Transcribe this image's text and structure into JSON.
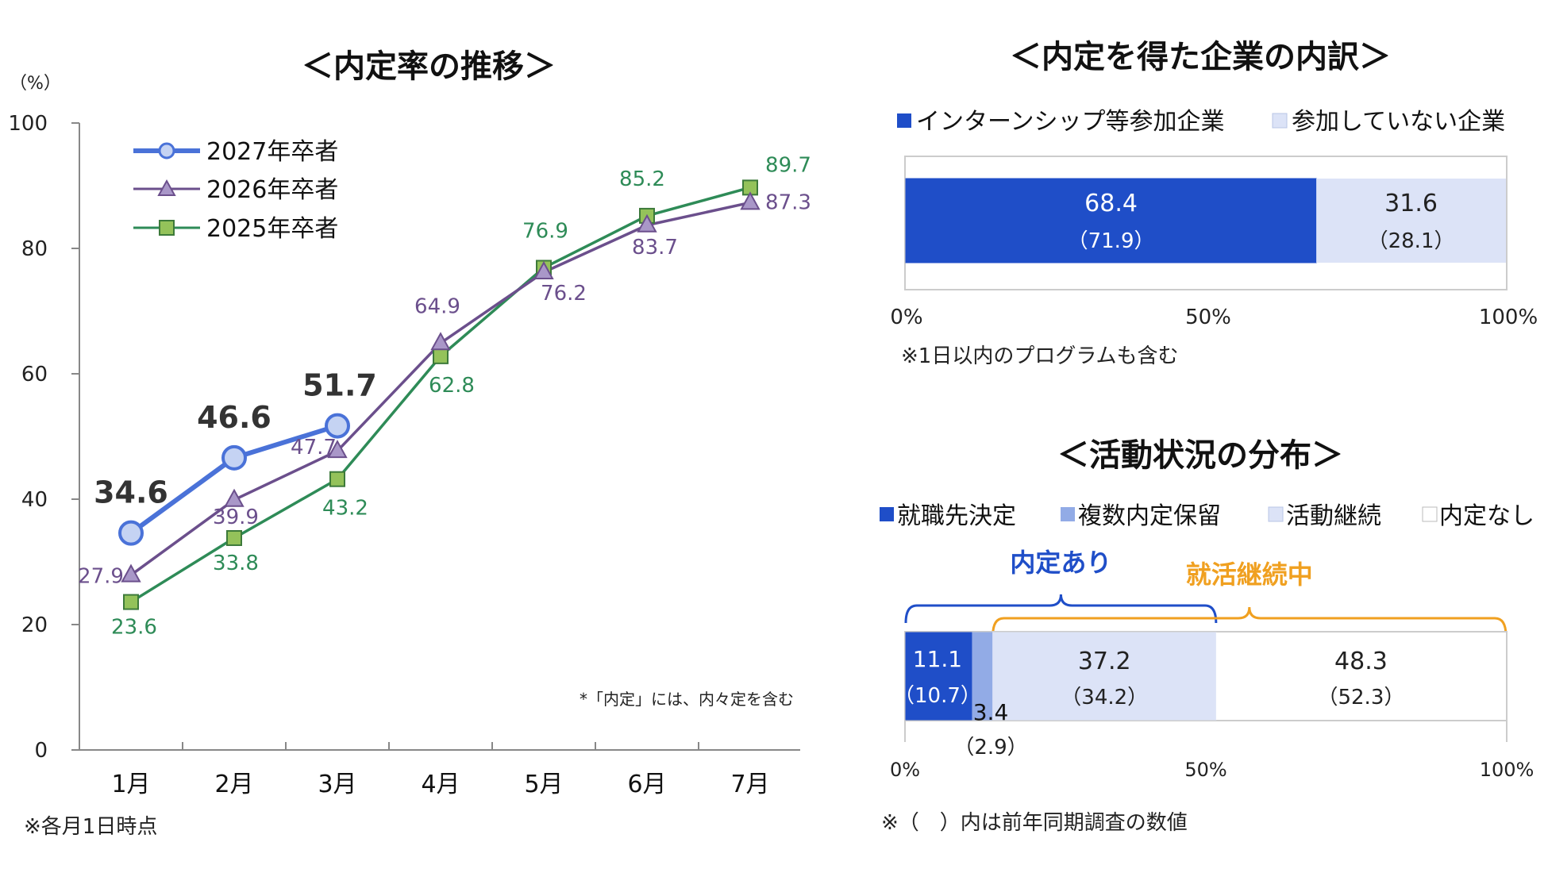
{
  "chart_data": [
    {
      "type": "line",
      "title": "＜内定率の推移＞",
      "ylabel": "（%）",
      "ylim": [
        0,
        100
      ],
      "yticks": [
        0,
        20,
        40,
        60,
        80,
        100
      ],
      "categories": [
        "1月",
        "2月",
        "3月",
        "4月",
        "5月",
        "6月",
        "7月"
      ],
      "legend_position": "top-left",
      "series": [
        {
          "name": "2027年卒者",
          "color": "#4a72d8",
          "marker": "circle",
          "values": [
            34.6,
            46.6,
            51.7,
            null,
            null,
            null,
            null
          ],
          "labels": [
            "34.6",
            "46.6",
            "51.7",
            "",
            "",
            "",
            ""
          ]
        },
        {
          "name": "2026年卒者",
          "color": "#6b4f8c",
          "marker": "triangle",
          "values": [
            27.9,
            39.9,
            47.7,
            64.9,
            76.2,
            83.7,
            87.3
          ],
          "labels": [
            "27.9",
            "39.9",
            "47.7",
            "64.9",
            "76.2",
            "83.7",
            "87.3"
          ]
        },
        {
          "name": "2025年卒者",
          "color": "#2e8b57",
          "marker": "square",
          "values": [
            23.6,
            33.8,
            43.2,
            62.8,
            76.9,
            85.2,
            89.7
          ],
          "labels": [
            "23.6",
            "33.8",
            "43.2",
            "62.8",
            "76.9",
            "85.2",
            "89.7"
          ]
        }
      ],
      "annotation": "*「内定」には、内々定を含む",
      "footnote": "※各月1日時点"
    },
    {
      "type": "bar",
      "orientation": "horizontal-stacked-100",
      "title": "＜内定を得た企業の内訳＞",
      "legend": [
        "インターンシップ等参加企業",
        "参加していない企業"
      ],
      "colors": [
        "#1f4ec8",
        "#dce3f7"
      ],
      "segments": [
        {
          "name": "インターンシップ等参加企業",
          "value": 68.4,
          "prev": 71.9,
          "label": "68.4",
          "prev_label": "（71.9）"
        },
        {
          "name": "参加していない企業",
          "value": 31.6,
          "prev": 28.1,
          "label": "31.6",
          "prev_label": "（28.1）"
        }
      ],
      "axis_labels": [
        "0%",
        "50%",
        "100%"
      ],
      "note": "※1日以内のプログラムも含む"
    },
    {
      "type": "bar",
      "orientation": "horizontal-stacked-100",
      "title": "＜活動状況の分布＞",
      "legend": [
        "就職先決定",
        "複数内定保留",
        "活動継続",
        "内定なし"
      ],
      "colors": [
        "#1f4ec8",
        "#92abe6",
        "#dce3f7",
        "#ffffff"
      ],
      "segments": [
        {
          "name": "就職先決定",
          "value": 11.1,
          "prev": 10.7,
          "label": "11.1",
          "prev_label": "（10.7）"
        },
        {
          "name": "複数内定保留",
          "value": 3.4,
          "prev": 2.9,
          "label": "3.4",
          "prev_label": "（2.9）"
        },
        {
          "name": "活動継続",
          "value": 37.2,
          "prev": 34.2,
          "label": "37.2",
          "prev_label": "（34.2）"
        },
        {
          "name": "内定なし",
          "value": 48.3,
          "prev": 52.3,
          "label": "48.3",
          "prev_label": "（52.3）"
        }
      ],
      "brackets": [
        {
          "label": "内定あり",
          "from": 0,
          "to": 51.7,
          "color": "#1f4ec8"
        },
        {
          "label": "就活継続中",
          "from": 14.5,
          "to": 100,
          "color": "#f0a020"
        }
      ],
      "axis_labels": [
        "0%",
        "50%",
        "100%"
      ],
      "note": "※（　）内は前年同期調査の数値"
    }
  ]
}
